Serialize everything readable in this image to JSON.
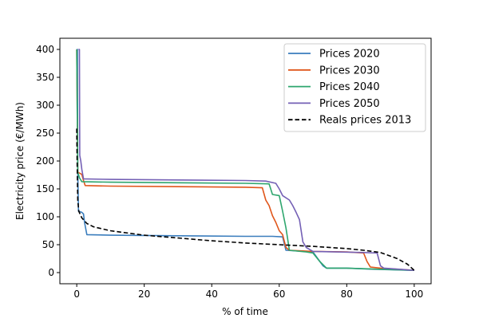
{
  "chart_data": {
    "type": "line",
    "title": "",
    "xlabel": "% of time",
    "ylabel": "Electricity price (€/MWh)",
    "xlim": [
      -5,
      105
    ],
    "ylim": [
      -20,
      420
    ],
    "xticks": [
      0,
      20,
      40,
      60,
      80,
      100
    ],
    "yticks": [
      0,
      50,
      100,
      150,
      200,
      250,
      300,
      350,
      400
    ],
    "grid": false,
    "legend_position": "top-right",
    "series": [
      {
        "name": "Prices 2020",
        "color": "#3a7dbd",
        "dash": false,
        "points": [
          [
            0,
            400
          ],
          [
            0.2,
            400
          ],
          [
            0.3,
            180
          ],
          [
            0.5,
            110
          ],
          [
            1.5,
            108
          ],
          [
            2,
            105
          ],
          [
            2.3,
            90
          ],
          [
            3,
            68
          ],
          [
            10,
            67
          ],
          [
            30,
            66
          ],
          [
            50,
            65
          ],
          [
            58,
            65
          ],
          [
            61,
            64
          ],
          [
            62,
            40
          ],
          [
            70,
            37
          ],
          [
            73,
            12
          ],
          [
            74,
            8
          ],
          [
            80,
            8
          ],
          [
            88,
            6
          ],
          [
            100,
            4
          ]
        ]
      },
      {
        "name": "Prices 2030",
        "color": "#e0561b",
        "dash": false,
        "points": [
          [
            0,
            400
          ],
          [
            0.3,
            180
          ],
          [
            1.5,
            176
          ],
          [
            2,
            165
          ],
          [
            2.5,
            156
          ],
          [
            10,
            155
          ],
          [
            30,
            154
          ],
          [
            50,
            153
          ],
          [
            55,
            152
          ],
          [
            56,
            130
          ],
          [
            57,
            120
          ],
          [
            58,
            102
          ],
          [
            59,
            90
          ],
          [
            60,
            75
          ],
          [
            61,
            68
          ],
          [
            62,
            45
          ],
          [
            63,
            40
          ],
          [
            70,
            38
          ],
          [
            80,
            37
          ],
          [
            85,
            35
          ],
          [
            86,
            20
          ],
          [
            87,
            10
          ],
          [
            90,
            8
          ],
          [
            100,
            4
          ]
        ]
      },
      {
        "name": "Prices 2040",
        "color": "#2ea66e",
        "dash": false,
        "points": [
          [
            0,
            400
          ],
          [
            0.3,
            180
          ],
          [
            0.8,
            170
          ],
          [
            1.5,
            163
          ],
          [
            10,
            162
          ],
          [
            30,
            161
          ],
          [
            50,
            160
          ],
          [
            57,
            159
          ],
          [
            58,
            140
          ],
          [
            60,
            138
          ],
          [
            61,
            110
          ],
          [
            62,
            80
          ],
          [
            63,
            40
          ],
          [
            68,
            37
          ],
          [
            70,
            35
          ],
          [
            72,
            20
          ],
          [
            74,
            8
          ],
          [
            80,
            8
          ],
          [
            90,
            6
          ],
          [
            100,
            4
          ]
        ]
      },
      {
        "name": "Prices 2050",
        "color": "#7460b5",
        "dash": false,
        "points": [
          [
            0.5,
            400
          ],
          [
            0.8,
            400
          ],
          [
            0.9,
            210
          ],
          [
            1.2,
            200
          ],
          [
            1.5,
            185
          ],
          [
            2,
            168
          ],
          [
            10,
            167
          ],
          [
            30,
            166
          ],
          [
            50,
            165
          ],
          [
            56,
            164
          ],
          [
            59,
            160
          ],
          [
            60,
            150
          ],
          [
            61,
            138
          ],
          [
            63,
            130
          ],
          [
            64,
            120
          ],
          [
            65,
            108
          ],
          [
            66,
            95
          ],
          [
            67,
            55
          ],
          [
            68,
            45
          ],
          [
            70,
            38
          ],
          [
            85,
            36
          ],
          [
            89,
            35
          ],
          [
            90,
            12
          ],
          [
            91,
            8
          ],
          [
            100,
            4
          ]
        ]
      },
      {
        "name": "Reals prices 2013",
        "color": "#000000",
        "dash": true,
        "points": [
          [
            0,
            258
          ],
          [
            0.1,
            200
          ],
          [
            0.3,
            130
          ],
          [
            0.6,
            110
          ],
          [
            1.5,
            98
          ],
          [
            3,
            88
          ],
          [
            5,
            82
          ],
          [
            10,
            75
          ],
          [
            20,
            67
          ],
          [
            30,
            62
          ],
          [
            40,
            57
          ],
          [
            50,
            53
          ],
          [
            60,
            50
          ],
          [
            70,
            47
          ],
          [
            80,
            43
          ],
          [
            85,
            40
          ],
          [
            90,
            36
          ],
          [
            95,
            25
          ],
          [
            98,
            15
          ],
          [
            100,
            4
          ]
        ]
      }
    ]
  }
}
